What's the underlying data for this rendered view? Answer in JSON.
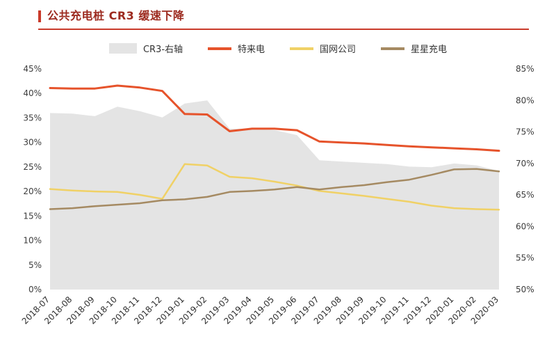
{
  "header": {
    "title": "公共充电桩 CR3 缓速下降",
    "title_color": "#9C2A1F",
    "accent_color": "#C93A2A"
  },
  "legend": [
    {
      "label": "CR3-右轴",
      "type": "area",
      "color": "#E4E4E4"
    },
    {
      "label": "特来电",
      "type": "line",
      "color": "#E6532B"
    },
    {
      "label": "国网公司",
      "type": "line",
      "color": "#F0D166"
    },
    {
      "label": "星星充电",
      "type": "line",
      "color": "#A58A62"
    }
  ],
  "chart_data": {
    "type": "line",
    "title": "公共充电桩 CR3 缓速下降",
    "categories": [
      "2018-07",
      "2018-08",
      "2018-09",
      "2018-10",
      "2018-11",
      "2018-12",
      "2019-01",
      "2019-02",
      "2019-03",
      "2019-04",
      "2019-05",
      "2019-06",
      "2019-07",
      "2019-08",
      "2019-09",
      "2019-10",
      "2019-11",
      "2019-12",
      "2020-01",
      "2020-02",
      "2020-03"
    ],
    "left_axis": {
      "min": 0,
      "max": 45,
      "step": 5,
      "format": "percent",
      "tick_labels": [
        "45%",
        "40%",
        "35%",
        "30%",
        "25%",
        "20%",
        "15%",
        "10%",
        "5%",
        "0%"
      ]
    },
    "right_axis": {
      "min": 50,
      "max": 85,
      "step": 5,
      "format": "percent",
      "tick_labels": [
        "85%",
        "80%",
        "75%",
        "70%",
        "65%",
        "60%",
        "55%",
        "50%"
      ]
    },
    "grid": false,
    "legend_position": "top",
    "series": [
      {
        "name": "CR3-右轴",
        "key": "cr3",
        "style": "area",
        "axis": "right",
        "color": "#E4E4E4",
        "values": [
          78.0,
          77.9,
          77.5,
          79.0,
          78.3,
          77.3,
          79.5,
          80.0,
          75.5,
          75.5,
          75.3,
          74.5,
          70.5,
          70.3,
          70.1,
          69.9,
          69.5,
          69.4,
          70.0,
          69.7,
          68.8
        ]
      },
      {
        "name": "特来电",
        "key": "telaidian",
        "style": "line",
        "axis": "left",
        "color": "#E6532B",
        "stroke_width": 3,
        "values": [
          41.1,
          41.0,
          41.0,
          41.6,
          41.2,
          40.5,
          35.8,
          35.7,
          32.3,
          32.8,
          32.8,
          32.5,
          30.2,
          30.0,
          29.8,
          29.5,
          29.2,
          29.0,
          28.8,
          28.6,
          28.3
        ]
      },
      {
        "name": "国网公司",
        "key": "guowang",
        "style": "line",
        "axis": "left",
        "color": "#F0D166",
        "stroke_width": 2.5,
        "values": [
          20.5,
          20.2,
          20.0,
          19.9,
          19.3,
          18.5,
          25.6,
          25.3,
          23.0,
          22.7,
          22.0,
          21.2,
          20.1,
          19.6,
          19.1,
          18.5,
          17.9,
          17.1,
          16.6,
          16.4,
          16.3
        ]
      },
      {
        "name": "星星充电",
        "key": "xingxing",
        "style": "line",
        "axis": "left",
        "color": "#A58A62",
        "stroke_width": 2.5,
        "values": [
          16.4,
          16.6,
          17.0,
          17.3,
          17.6,
          18.2,
          18.4,
          18.9,
          19.9,
          20.1,
          20.4,
          20.9,
          20.4,
          20.9,
          21.3,
          21.9,
          22.4,
          23.4,
          24.5,
          24.6,
          24.1
        ]
      }
    ]
  }
}
